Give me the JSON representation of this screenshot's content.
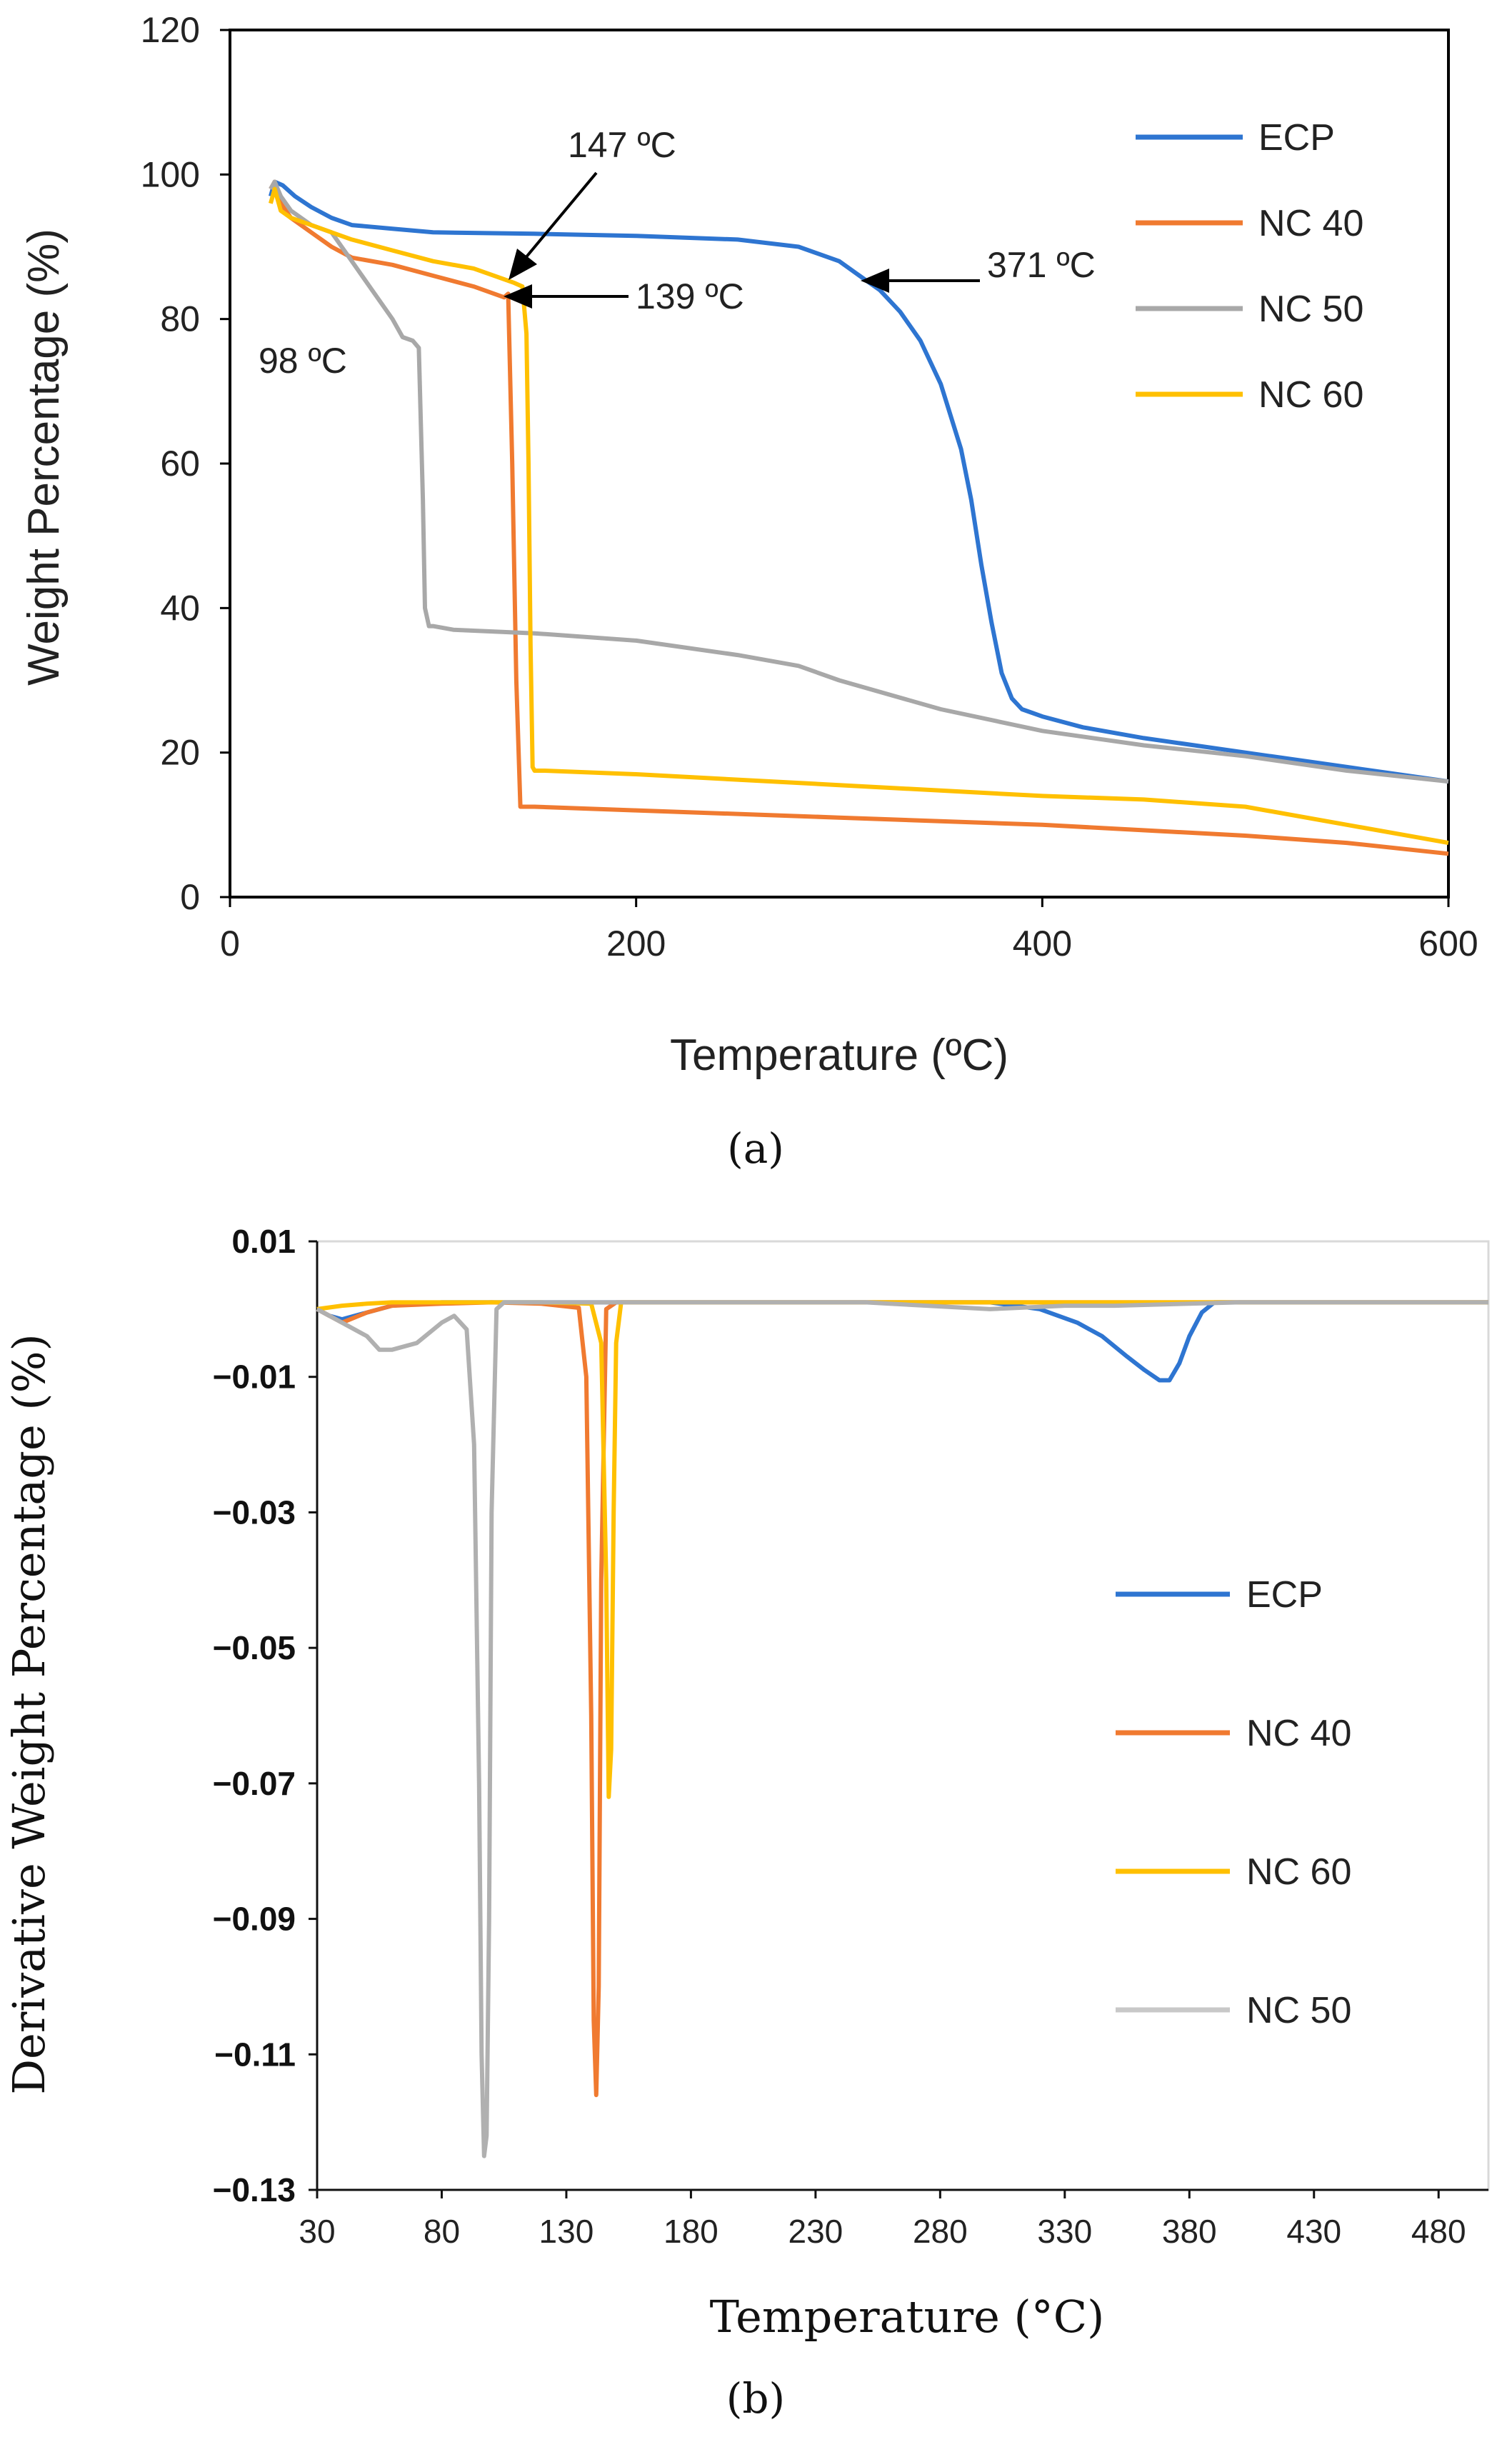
{
  "figure": {
    "caption_a": "(a)",
    "caption_b": "(b)"
  },
  "chart_data": [
    {
      "type": "line",
      "panel": "a",
      "xlabel": "Temperature (ºC)",
      "ylabel": "Weight Percentage (%)",
      "xlim": [
        0,
        600
      ],
      "ylim": [
        0,
        120
      ],
      "xticks": [
        0,
        200,
        400,
        600
      ],
      "yticks": [
        0,
        20,
        40,
        60,
        80,
        100,
        120
      ],
      "grid": false,
      "legend_position": "top-right",
      "series": [
        {
          "name": "ECP",
          "color": "#2E75D1",
          "x": [
            20,
            22,
            26,
            32,
            40,
            50,
            60,
            80,
            100,
            150,
            200,
            250,
            280,
            300,
            310,
            320,
            330,
            340,
            350,
            360,
            365,
            370,
            375,
            380,
            385,
            390,
            395,
            400,
            420,
            450,
            500,
            550,
            600
          ],
          "y": [
            97,
            99,
            98.5,
            97,
            95.5,
            94,
            93,
            92.5,
            92,
            91.8,
            91.5,
            91,
            90,
            88,
            86,
            84,
            81,
            77,
            71,
            62,
            55,
            46,
            38,
            31,
            27.5,
            26,
            25.5,
            25,
            23.5,
            22,
            20,
            18,
            16
          ]
        },
        {
          "name": "NC 40",
          "color": "#F07A30",
          "x": [
            20,
            22,
            25,
            30,
            40,
            50,
            60,
            80,
            100,
            120,
            135,
            137,
            139,
            141,
            143,
            145,
            150,
            200,
            300,
            400,
            500,
            550,
            600
          ],
          "y": [
            98,
            99,
            96,
            94,
            92,
            90,
            88.5,
            87.5,
            86,
            84.5,
            83,
            83.5,
            60,
            30,
            12.5,
            12.5,
            12.5,
            12,
            11,
            10,
            8.5,
            7.5,
            6
          ]
        },
        {
          "name": "NC 50",
          "color": "#A8A8A8",
          "x": [
            20,
            22,
            25,
            30,
            40,
            50,
            60,
            70,
            80,
            85,
            90,
            93,
            95,
            96,
            98,
            100,
            110,
            150,
            200,
            250,
            280,
            300,
            350,
            400,
            450,
            500,
            550,
            600
          ],
          "y": [
            98,
            99,
            97,
            95,
            93,
            92,
            88,
            84,
            80,
            77.5,
            77,
            76,
            55,
            40,
            37.5,
            37.5,
            37,
            36.5,
            35.5,
            33.5,
            32,
            30,
            26,
            23,
            21,
            19.5,
            17.5,
            16
          ]
        },
        {
          "name": "NC 60",
          "color": "#FFC000",
          "x": [
            20,
            22,
            25,
            30,
            40,
            50,
            60,
            80,
            100,
            120,
            140,
            144,
            146,
            147,
            148,
            149,
            150,
            155,
            200,
            300,
            400,
            450,
            500,
            550,
            600
          ],
          "y": [
            96,
            98,
            95,
            94,
            93,
            92,
            91,
            89.5,
            88,
            87,
            85,
            84.5,
            78,
            60,
            35,
            18,
            17.5,
            17.5,
            17,
            15.5,
            14,
            13.5,
            12.5,
            10,
            7.5
          ]
        }
      ],
      "annotations": [
        {
          "text": "147 ºC",
          "x": 147,
          "y": 85
        },
        {
          "text": "139 ºC",
          "x": 139,
          "y": 83
        },
        {
          "text": "371 ºC",
          "x": 310,
          "y": 85
        },
        {
          "text": "98 ºC",
          "x": 98,
          "y": 77
        }
      ]
    },
    {
      "type": "line",
      "panel": "b",
      "xlabel": "Temperature (°C)",
      "ylabel": "Derivative Weight Percentage (%)",
      "xlim": [
        30,
        500
      ],
      "ylim": [
        -0.13,
        0.01
      ],
      "xticks": [
        30,
        80,
        130,
        180,
        230,
        280,
        330,
        380,
        430,
        480
      ],
      "yticks": [
        0.01,
        -0.01,
        -0.03,
        -0.05,
        -0.07,
        -0.09,
        -0.11,
        -0.13
      ],
      "ytick_labels": [
        "0.01",
        "−0.01",
        "−0.03",
        "−0.05",
        "−0.07",
        "−0.09",
        "−0.11",
        "−0.13"
      ],
      "grid": false,
      "legend_position": "right",
      "series": [
        {
          "name": "ECP",
          "color": "#2E75D1",
          "x": [
            30,
            35,
            40,
            50,
            60,
            70,
            80,
            90,
            100,
            150,
            200,
            250,
            300,
            320,
            335,
            345,
            355,
            362,
            368,
            372,
            376,
            380,
            385,
            390,
            395,
            400,
            450,
            500
          ],
          "y": [
            0,
            -0.001,
            -0.0015,
            -0.0005,
            0.0005,
            0.0008,
            0.001,
            0.001,
            0.001,
            0.001,
            0.001,
            0.001,
            0.001,
            0,
            -0.002,
            -0.004,
            -0.007,
            -0.009,
            -0.0105,
            -0.0105,
            -0.008,
            -0.004,
            -0.0005,
            0.001,
            0.001,
            0.001,
            0.001,
            0.001
          ]
        },
        {
          "name": "NC 40",
          "color": "#F07A30",
          "x": [
            30,
            35,
            40,
            50,
            60,
            80,
            100,
            120,
            135,
            138,
            140,
            141,
            142,
            143,
            144,
            146,
            150,
            200,
            300,
            400,
            500
          ],
          "y": [
            0,
            -0.001,
            -0.002,
            -0.0005,
            0.0005,
            0.0008,
            0.001,
            0.0008,
            0.0002,
            -0.01,
            -0.06,
            -0.105,
            -0.116,
            -0.1,
            -0.04,
            0,
            0.001,
            0.001,
            0.001,
            0.001,
            0.001
          ]
        },
        {
          "name": "NC 60",
          "color": "#FFC000",
          "x": [
            30,
            40,
            50,
            60,
            80,
            100,
            120,
            140,
            144,
            146,
            147,
            148,
            149,
            150,
            152,
            155,
            200,
            300,
            400,
            500
          ],
          "y": [
            0,
            0.0005,
            0.0008,
            0.001,
            0.001,
            0.001,
            0.001,
            0.0008,
            -0.005,
            -0.04,
            -0.072,
            -0.065,
            -0.03,
            -0.005,
            0.001,
            0.001,
            0.001,
            0.001,
            0.001,
            0.001
          ]
        },
        {
          "name": "NC 50",
          "color": "#A8A8A8",
          "x": [
            30,
            40,
            50,
            55,
            60,
            70,
            80,
            85,
            90,
            93,
            95,
            96,
            97,
            98,
            99,
            100,
            102,
            105,
            110,
            150,
            200,
            250,
            300,
            330,
            350,
            400,
            450,
            500
          ],
          "y": [
            0,
            -0.002,
            -0.004,
            -0.006,
            -0.006,
            -0.005,
            -0.002,
            -0.001,
            -0.003,
            -0.02,
            -0.07,
            -0.11,
            -0.125,
            -0.122,
            -0.09,
            -0.03,
            0,
            0.001,
            0.001,
            0.001,
            0.001,
            0.001,
            0,
            0.0005,
            0.0005,
            0.001,
            0.001,
            0.001
          ]
        }
      ]
    }
  ]
}
